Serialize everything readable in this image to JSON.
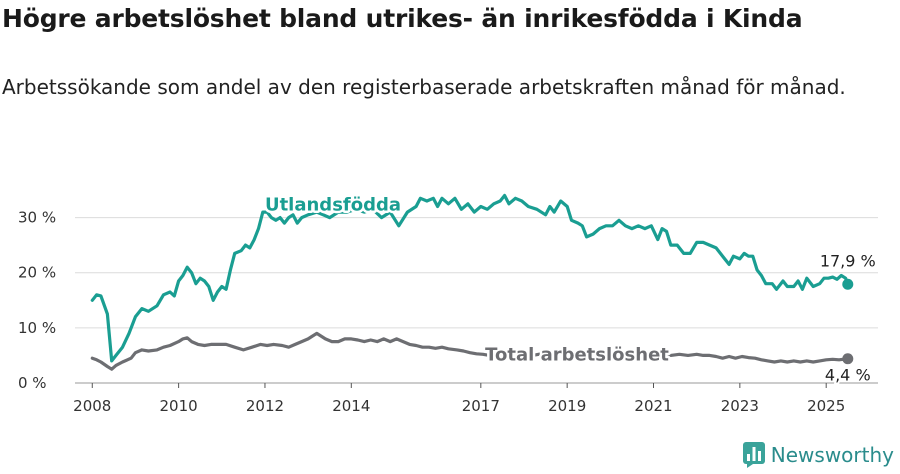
{
  "header": {
    "title": "Högre arbetslöshet bland utrikes- än inrikesfödda i Kinda",
    "subtitle": "Arbetssökande som andel av den registerbaserade arbetskraften månad för månad."
  },
  "brand": {
    "name": "Newsworthy",
    "color": "#2a9d8f"
  },
  "chart_data": {
    "type": "line",
    "x_unit": "year",
    "xlim": [
      2007.6,
      2026.2
    ],
    "ylim": [
      0,
      35
    ],
    "grid": true,
    "y_ticks": [
      {
        "value": 0,
        "label": "0 %"
      },
      {
        "value": 10,
        "label": "10 %"
      },
      {
        "value": 20,
        "label": "20 %"
      },
      {
        "value": 30,
        "label": "30 %"
      }
    ],
    "x_ticks": [
      {
        "value": 2008,
        "label": "2008"
      },
      {
        "value": 2010,
        "label": "2010"
      },
      {
        "value": 2012,
        "label": "2012"
      },
      {
        "value": 2014,
        "label": "2014"
      },
      {
        "value": 2017,
        "label": "2017"
      },
      {
        "value": 2019,
        "label": "2019"
      },
      {
        "value": 2021,
        "label": "2021"
      },
      {
        "value": 2023,
        "label": "2023"
      },
      {
        "value": 2025,
        "label": "2025"
      }
    ],
    "series": [
      {
        "name": "Utlandsfödda",
        "color": "#1a9e92",
        "end_label": "17,9 %",
        "points": [
          [
            2008.0,
            15.0
          ],
          [
            2008.1,
            16.0
          ],
          [
            2008.2,
            15.8
          ],
          [
            2008.35,
            12.5
          ],
          [
            2008.45,
            4.0
          ],
          [
            2008.55,
            5.0
          ],
          [
            2008.7,
            6.5
          ],
          [
            2008.85,
            9.0
          ],
          [
            2009.0,
            12.0
          ],
          [
            2009.15,
            13.5
          ],
          [
            2009.3,
            13.0
          ],
          [
            2009.5,
            14.0
          ],
          [
            2009.65,
            16.0
          ],
          [
            2009.8,
            16.5
          ],
          [
            2009.9,
            15.8
          ],
          [
            2010.0,
            18.5
          ],
          [
            2010.1,
            19.5
          ],
          [
            2010.2,
            21.0
          ],
          [
            2010.3,
            20.0
          ],
          [
            2010.4,
            18.0
          ],
          [
            2010.5,
            19.0
          ],
          [
            2010.6,
            18.5
          ],
          [
            2010.7,
            17.5
          ],
          [
            2010.8,
            15.0
          ],
          [
            2010.9,
            16.5
          ],
          [
            2011.0,
            17.5
          ],
          [
            2011.1,
            17.0
          ],
          [
            2011.2,
            20.5
          ],
          [
            2011.3,
            23.5
          ],
          [
            2011.45,
            24.0
          ],
          [
            2011.55,
            25.0
          ],
          [
            2011.65,
            24.5
          ],
          [
            2011.75,
            26.0
          ],
          [
            2011.85,
            28.0
          ],
          [
            2011.95,
            31.0
          ],
          [
            2012.05,
            31.0
          ],
          [
            2012.15,
            30.0
          ],
          [
            2012.25,
            29.5
          ],
          [
            2012.35,
            30.0
          ],
          [
            2012.45,
            29.0
          ],
          [
            2012.55,
            30.0
          ],
          [
            2012.65,
            30.5
          ],
          [
            2012.75,
            29.0
          ],
          [
            2012.85,
            30.0
          ],
          [
            2013.0,
            30.5
          ],
          [
            2013.2,
            31.0
          ],
          [
            2013.35,
            30.5
          ],
          [
            2013.5,
            30.0
          ],
          [
            2013.7,
            31.0
          ],
          [
            2013.9,
            31.0
          ],
          [
            2014.1,
            31.5
          ],
          [
            2014.3,
            31.0
          ],
          [
            2014.5,
            31.5
          ],
          [
            2014.7,
            30.0
          ],
          [
            2014.9,
            31.0
          ],
          [
            2015.1,
            28.5
          ],
          [
            2015.3,
            31.0
          ],
          [
            2015.5,
            32.0
          ],
          [
            2015.6,
            33.5
          ],
          [
            2015.75,
            33.0
          ],
          [
            2015.9,
            33.5
          ],
          [
            2016.0,
            32.0
          ],
          [
            2016.1,
            33.5
          ],
          [
            2016.25,
            32.5
          ],
          [
            2016.4,
            33.5
          ],
          [
            2016.55,
            31.5
          ],
          [
            2016.7,
            32.5
          ],
          [
            2016.85,
            31.0
          ],
          [
            2017.0,
            32.0
          ],
          [
            2017.15,
            31.5
          ],
          [
            2017.3,
            32.5
          ],
          [
            2017.45,
            33.0
          ],
          [
            2017.55,
            34.0
          ],
          [
            2017.65,
            32.5
          ],
          [
            2017.8,
            33.5
          ],
          [
            2017.95,
            33.0
          ],
          [
            2018.1,
            32.0
          ],
          [
            2018.3,
            31.5
          ],
          [
            2018.5,
            30.5
          ],
          [
            2018.6,
            32.0
          ],
          [
            2018.7,
            31.0
          ],
          [
            2018.85,
            33.0
          ],
          [
            2019.0,
            32.0
          ],
          [
            2019.1,
            29.5
          ],
          [
            2019.25,
            29.0
          ],
          [
            2019.35,
            28.5
          ],
          [
            2019.45,
            26.5
          ],
          [
            2019.6,
            27.0
          ],
          [
            2019.75,
            28.0
          ],
          [
            2019.9,
            28.5
          ],
          [
            2020.05,
            28.5
          ],
          [
            2020.2,
            29.5
          ],
          [
            2020.35,
            28.5
          ],
          [
            2020.5,
            28.0
          ],
          [
            2020.65,
            28.5
          ],
          [
            2020.8,
            28.0
          ],
          [
            2020.95,
            28.5
          ],
          [
            2021.1,
            26.0
          ],
          [
            2021.2,
            28.0
          ],
          [
            2021.3,
            27.5
          ],
          [
            2021.4,
            25.0
          ],
          [
            2021.55,
            25.0
          ],
          [
            2021.7,
            23.5
          ],
          [
            2021.85,
            23.5
          ],
          [
            2022.0,
            25.5
          ],
          [
            2022.15,
            25.5
          ],
          [
            2022.3,
            25.0
          ],
          [
            2022.45,
            24.5
          ],
          [
            2022.55,
            23.5
          ],
          [
            2022.65,
            22.5
          ],
          [
            2022.75,
            21.5
          ],
          [
            2022.85,
            23.0
          ],
          [
            2023.0,
            22.5
          ],
          [
            2023.1,
            23.5
          ],
          [
            2023.2,
            23.0
          ],
          [
            2023.3,
            23.0
          ],
          [
            2023.4,
            20.5
          ],
          [
            2023.5,
            19.5
          ],
          [
            2023.6,
            18.0
          ],
          [
            2023.75,
            18.0
          ],
          [
            2023.85,
            17.0
          ],
          [
            2024.0,
            18.5
          ],
          [
            2024.1,
            17.5
          ],
          [
            2024.25,
            17.5
          ],
          [
            2024.35,
            18.5
          ],
          [
            2024.45,
            17.0
          ],
          [
            2024.55,
            19.0
          ],
          [
            2024.7,
            17.5
          ],
          [
            2024.85,
            18.0
          ],
          [
            2024.95,
            19.0
          ],
          [
            2025.05,
            19.0
          ],
          [
            2025.15,
            19.2
          ],
          [
            2025.25,
            18.8
          ],
          [
            2025.35,
            19.5
          ],
          [
            2025.45,
            19.0
          ],
          [
            2025.5,
            17.9
          ]
        ]
      },
      {
        "name": "Total arbetslöshet",
        "color": "#6d6e72",
        "end_label": "4,4 %",
        "points": [
          [
            2008.0,
            4.5
          ],
          [
            2008.1,
            4.2
          ],
          [
            2008.2,
            3.8
          ],
          [
            2008.35,
            3.0
          ],
          [
            2008.45,
            2.5
          ],
          [
            2008.55,
            3.2
          ],
          [
            2008.7,
            3.8
          ],
          [
            2008.9,
            4.5
          ],
          [
            2009.0,
            5.5
          ],
          [
            2009.15,
            6.0
          ],
          [
            2009.3,
            5.8
          ],
          [
            2009.5,
            6.0
          ],
          [
            2009.65,
            6.5
          ],
          [
            2009.8,
            6.8
          ],
          [
            2010.0,
            7.5
          ],
          [
            2010.1,
            8.0
          ],
          [
            2010.2,
            8.2
          ],
          [
            2010.3,
            7.5
          ],
          [
            2010.45,
            7.0
          ],
          [
            2010.6,
            6.8
          ],
          [
            2010.75,
            7.0
          ],
          [
            2010.9,
            7.0
          ],
          [
            2011.1,
            7.0
          ],
          [
            2011.3,
            6.5
          ],
          [
            2011.5,
            6.0
          ],
          [
            2011.7,
            6.5
          ],
          [
            2011.9,
            7.0
          ],
          [
            2012.05,
            6.8
          ],
          [
            2012.2,
            7.0
          ],
          [
            2012.4,
            6.8
          ],
          [
            2012.55,
            6.5
          ],
          [
            2012.7,
            7.0
          ],
          [
            2012.85,
            7.5
          ],
          [
            2013.0,
            8.0
          ],
          [
            2013.1,
            8.5
          ],
          [
            2013.2,
            9.0
          ],
          [
            2013.3,
            8.5
          ],
          [
            2013.4,
            8.0
          ],
          [
            2013.55,
            7.5
          ],
          [
            2013.7,
            7.5
          ],
          [
            2013.85,
            8.0
          ],
          [
            2014.0,
            8.0
          ],
          [
            2014.15,
            7.8
          ],
          [
            2014.3,
            7.5
          ],
          [
            2014.45,
            7.8
          ],
          [
            2014.6,
            7.5
          ],
          [
            2014.75,
            8.0
          ],
          [
            2014.9,
            7.5
          ],
          [
            2015.05,
            8.0
          ],
          [
            2015.2,
            7.5
          ],
          [
            2015.35,
            7.0
          ],
          [
            2015.5,
            6.8
          ],
          [
            2015.65,
            6.5
          ],
          [
            2015.8,
            6.5
          ],
          [
            2015.95,
            6.3
          ],
          [
            2016.1,
            6.5
          ],
          [
            2016.25,
            6.2
          ],
          [
            2016.45,
            6.0
          ],
          [
            2016.6,
            5.8
          ],
          [
            2016.75,
            5.5
          ],
          [
            2016.9,
            5.3
          ],
          [
            2017.05,
            5.2
          ],
          [
            2017.2,
            5.0
          ],
          [
            2017.35,
            5.2
          ],
          [
            2017.5,
            5.0
          ],
          [
            2017.65,
            5.2
          ],
          [
            2017.8,
            5.0
          ],
          [
            2018.0,
            5.2
          ],
          [
            2018.2,
            5.0
          ],
          [
            2018.4,
            5.3
          ],
          [
            2018.6,
            5.5
          ],
          [
            2018.8,
            5.5
          ],
          [
            2019.0,
            5.3
          ],
          [
            2019.2,
            5.5
          ],
          [
            2019.4,
            5.3
          ],
          [
            2019.6,
            5.5
          ],
          [
            2019.8,
            5.3
          ],
          [
            2020.0,
            5.5
          ],
          [
            2020.2,
            5.8
          ],
          [
            2020.4,
            5.5
          ],
          [
            2020.6,
            5.5
          ],
          [
            2020.8,
            5.3
          ],
          [
            2021.0,
            5.5
          ],
          [
            2021.2,
            5.3
          ],
          [
            2021.4,
            5.0
          ],
          [
            2021.6,
            5.2
          ],
          [
            2021.8,
            5.0
          ],
          [
            2022.0,
            5.2
          ],
          [
            2022.15,
            5.0
          ],
          [
            2022.3,
            5.0
          ],
          [
            2022.45,
            4.8
          ],
          [
            2022.6,
            4.5
          ],
          [
            2022.75,
            4.8
          ],
          [
            2022.9,
            4.5
          ],
          [
            2023.05,
            4.8
          ],
          [
            2023.2,
            4.6
          ],
          [
            2023.35,
            4.5
          ],
          [
            2023.5,
            4.2
          ],
          [
            2023.65,
            4.0
          ],
          [
            2023.8,
            3.8
          ],
          [
            2023.95,
            4.0
          ],
          [
            2024.1,
            3.8
          ],
          [
            2024.25,
            4.0
          ],
          [
            2024.4,
            3.8
          ],
          [
            2024.55,
            4.0
          ],
          [
            2024.7,
            3.8
          ],
          [
            2024.85,
            4.0
          ],
          [
            2025.0,
            4.2
          ],
          [
            2025.15,
            4.3
          ],
          [
            2025.3,
            4.2
          ],
          [
            2025.5,
            4.4
          ]
        ]
      }
    ]
  }
}
